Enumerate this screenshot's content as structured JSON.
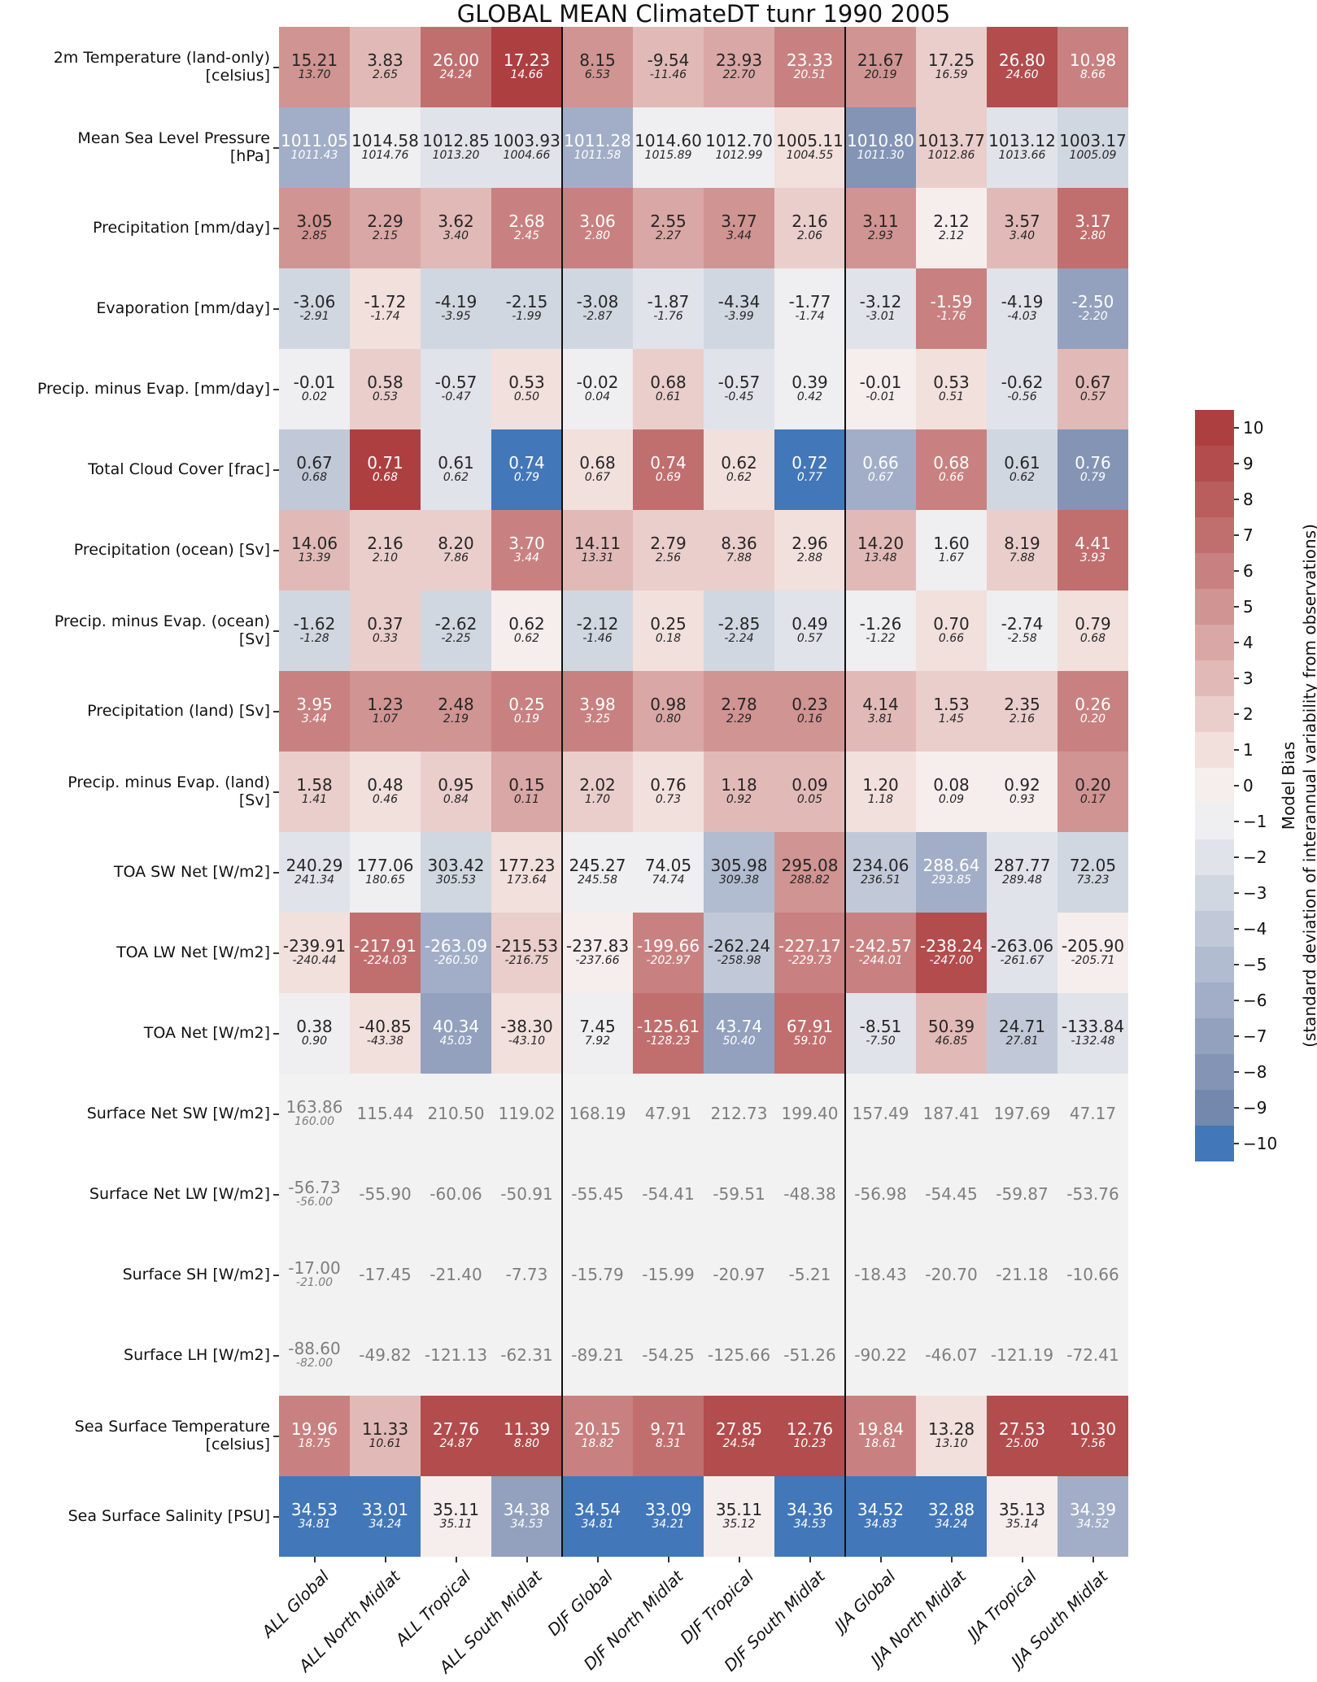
{
  "title": "GLOBAL MEAN ClimateDT tunr 1990 2005",
  "colorbar": {
    "title_line1": "Model Bias",
    "title_line2": "(standard deviation of interannual variability from observations)",
    "tick_labels": [
      "10",
      "9",
      "8",
      "7",
      "6",
      "5",
      "4",
      "3",
      "2",
      "1",
      "0",
      "−1",
      "−2",
      "−3",
      "−4",
      "−5",
      "−6",
      "−7",
      "−8",
      "−9",
      "−10"
    ],
    "palette_top_to_bottom": [
      "#ad3f41",
      "#b24c4d",
      "#b95d5d",
      "#c06f6e",
      "#c88180",
      "#d09492",
      "#d9a7a5",
      "#e1bab7",
      "#eacecb",
      "#f2e0dd",
      "#f6eeec",
      "#efeef0",
      "#e0e3ea",
      "#d1d7e1",
      "#c1c9d8",
      "#b2bcd0",
      "#a2aec7",
      "#93a1be",
      "#8394b5",
      "#7487ad",
      "#4277b9"
    ],
    "neutral_color": "#f2f2f2"
  },
  "chart_data": {
    "type": "heatmap",
    "title": "GLOBAL MEAN ClimateDT tunr 1990 2005",
    "colorbar_range": [
      -10,
      10
    ],
    "columns": [
      "ALL Global",
      "ALL North Midlat",
      "ALL Tropical",
      "ALL South Midlat",
      "DJF Global",
      "DJF North Midlat",
      "DJF Tropical",
      "DJF South Midlat",
      "JJA Global",
      "JJA North Midlat",
      "JJA Tropical",
      "JJA South Midlat"
    ],
    "column_groups": [
      {
        "label": "ALL",
        "after_col": 4
      },
      {
        "label": "DJF",
        "after_col": 8
      }
    ],
    "rows": [
      {
        "label_lines": [
          "2m Temperature (land-only)",
          "[celsius]"
        ],
        "values": [
          "15.21",
          "3.83",
          "26.00",
          "17.23",
          "8.15",
          "-9.54",
          "23.93",
          "23.33",
          "21.67",
          "17.25",
          "26.80",
          "10.98"
        ],
        "ref_values": [
          "13.70",
          "2.65",
          "24.24",
          "14.66",
          "6.53",
          "-11.46",
          "22.70",
          "20.51",
          "20.19",
          "16.59",
          "24.60",
          "8.66"
        ],
        "bias_levels": [
          5,
          3,
          7,
          10,
          5,
          3,
          4,
          6,
          5,
          2,
          9,
          6
        ]
      },
      {
        "label_lines": [
          "Mean Sea Level Pressure",
          "[hPa]"
        ],
        "values": [
          "1011.05",
          "1014.58",
          "1012.85",
          "1003.93",
          "1011.28",
          "1014.60",
          "1012.70",
          "1005.11",
          "1010.80",
          "1013.77",
          "1013.12",
          "1003.17"
        ],
        "ref_values": [
          "1011.43",
          "1014.76",
          "1013.20",
          "1004.66",
          "1011.58",
          "1015.89",
          "1012.99",
          "1004.55",
          "1011.30",
          "1012.86",
          "1013.66",
          "1005.09"
        ],
        "bias_levels": [
          -6,
          -1,
          -2,
          -2,
          -6,
          -1,
          -1,
          1,
          -8,
          2,
          -2,
          -3
        ]
      },
      {
        "label_lines": [
          "Precipitation [mm/day]"
        ],
        "values": [
          "3.05",
          "2.29",
          "3.62",
          "2.68",
          "3.06",
          "2.55",
          "3.77",
          "2.16",
          "3.11",
          "2.12",
          "3.57",
          "3.17"
        ],
        "ref_values": [
          "2.85",
          "2.15",
          "3.40",
          "2.45",
          "2.80",
          "2.27",
          "3.44",
          "2.06",
          "2.93",
          "2.12",
          "3.40",
          "2.80"
        ],
        "bias_levels": [
          5,
          4,
          3,
          6,
          6,
          4,
          5,
          2,
          5,
          0,
          3,
          7
        ]
      },
      {
        "label_lines": [
          "Evaporation [mm/day]"
        ],
        "values": [
          "-3.06",
          "-1.72",
          "-4.19",
          "-2.15",
          "-3.08",
          "-1.87",
          "-4.34",
          "-1.77",
          "-3.12",
          "-1.59",
          "-4.19",
          "-2.50"
        ],
        "ref_values": [
          "-2.91",
          "-1.74",
          "-3.95",
          "-1.99",
          "-2.87",
          "-1.76",
          "-3.99",
          "-1.74",
          "-3.01",
          "-1.76",
          "-4.03",
          "-2.20"
        ],
        "bias_levels": [
          -3,
          1,
          -3,
          -3,
          -3,
          -2,
          -3,
          -1,
          -2,
          6,
          -2,
          -7
        ]
      },
      {
        "label_lines": [
          "Precip. minus Evap. [mm/day]"
        ],
        "values": [
          "-0.01",
          "0.58",
          "-0.57",
          "0.53",
          "-0.02",
          "0.68",
          "-0.57",
          "0.39",
          "-0.01",
          "0.53",
          "-0.62",
          "0.67"
        ],
        "ref_values": [
          "0.02",
          "0.53",
          "-0.47",
          "0.50",
          "0.04",
          "0.61",
          "-0.45",
          "0.42",
          "-0.01",
          "0.51",
          "-0.56",
          "0.57"
        ],
        "bias_levels": [
          -1,
          2,
          -2,
          1,
          -1,
          2,
          -2,
          -1,
          0,
          1,
          -2,
          3
        ]
      },
      {
        "label_lines": [
          "Total Cloud Cover [frac]"
        ],
        "values": [
          "0.67",
          "0.71",
          "0.61",
          "0.74",
          "0.68",
          "0.74",
          "0.62",
          "0.72",
          "0.66",
          "0.68",
          "0.61",
          "0.76"
        ],
        "ref_values": [
          "0.68",
          "0.68",
          "0.62",
          "0.79",
          "0.67",
          "0.69",
          "0.62",
          "0.77",
          "0.67",
          "0.66",
          "0.62",
          "0.79"
        ],
        "bias_levels": [
          -4,
          10,
          -2,
          -10,
          1,
          7,
          1,
          -10,
          -6,
          6,
          -3,
          -8
        ]
      },
      {
        "label_lines": [
          "Precipitation (ocean) [Sv]"
        ],
        "values": [
          "14.06",
          "2.16",
          "8.20",
          "3.70",
          "14.11",
          "2.79",
          "8.36",
          "2.96",
          "14.20",
          "1.60",
          "8.19",
          "4.41"
        ],
        "ref_values": [
          "13.39",
          "2.10",
          "7.86",
          "3.44",
          "13.31",
          "2.56",
          "7.88",
          "2.88",
          "13.48",
          "1.67",
          "7.88",
          "3.93"
        ],
        "bias_levels": [
          3,
          2,
          2,
          6,
          3,
          2,
          2,
          1,
          3,
          -1,
          2,
          7
        ]
      },
      {
        "label_lines": [
          "Precip. minus Evap. (ocean)",
          "[Sv]"
        ],
        "values": [
          "-1.62",
          "0.37",
          "-2.62",
          "0.62",
          "-2.12",
          "0.25",
          "-2.85",
          "0.49",
          "-1.26",
          "0.70",
          "-2.74",
          "0.79"
        ],
        "ref_values": [
          "-1.28",
          "0.33",
          "-2.25",
          "0.62",
          "-1.46",
          "0.18",
          "-2.24",
          "0.57",
          "-1.22",
          "0.66",
          "-2.58",
          "0.68"
        ],
        "bias_levels": [
          -3,
          2,
          -3,
          0,
          -3,
          1,
          -3,
          -2,
          -1,
          1,
          -1,
          1
        ]
      },
      {
        "label_lines": [
          "Precipitation (land) [Sv]"
        ],
        "values": [
          "3.95",
          "1.23",
          "2.48",
          "0.25",
          "3.98",
          "0.98",
          "2.78",
          "0.23",
          "4.14",
          "1.53",
          "2.35",
          "0.26"
        ],
        "ref_values": [
          "3.44",
          "1.07",
          "2.19",
          "0.19",
          "3.25",
          "0.80",
          "2.29",
          "0.16",
          "3.81",
          "1.45",
          "2.16",
          "0.20"
        ],
        "bias_levels": [
          6,
          5,
          5,
          6,
          6,
          4,
          5,
          5,
          3,
          2,
          2,
          6
        ]
      },
      {
        "label_lines": [
          "Precip. minus Evap. (land)",
          "[Sv]"
        ],
        "values": [
          "1.58",
          "0.48",
          "0.95",
          "0.15",
          "2.02",
          "0.76",
          "1.18",
          "0.09",
          "1.20",
          "0.08",
          "0.92",
          "0.20"
        ],
        "ref_values": [
          "1.41",
          "0.46",
          "0.84",
          "0.11",
          "1.70",
          "0.73",
          "0.92",
          "0.05",
          "1.18",
          "0.09",
          "0.93",
          "0.17"
        ],
        "bias_levels": [
          2,
          1,
          2,
          4,
          2,
          1,
          3,
          3,
          1,
          0,
          0,
          5
        ]
      },
      {
        "label_lines": [
          "TOA SW Net [W/m2]"
        ],
        "values": [
          "240.29",
          "177.06",
          "303.42",
          "177.23",
          "245.27",
          "74.05",
          "305.98",
          "295.08",
          "234.06",
          "288.64",
          "287.77",
          "72.05"
        ],
        "ref_values": [
          "241.34",
          "180.65",
          "305.53",
          "173.64",
          "245.58",
          "74.74",
          "309.38",
          "288.82",
          "236.51",
          "293.85",
          "289.48",
          "73.23"
        ],
        "bias_levels": [
          -2,
          -1,
          -3,
          1,
          -1,
          -1,
          -5,
          5,
          -4,
          -6,
          -2,
          -3
        ]
      },
      {
        "label_lines": [
          "TOA LW Net [W/m2]"
        ],
        "values": [
          "-239.91",
          "-217.91",
          "-263.09",
          "-215.53",
          "-237.83",
          "-199.66",
          "-262.24",
          "-227.17",
          "-242.57",
          "-238.24",
          "-263.06",
          "-205.90"
        ],
        "ref_values": [
          "-240.44",
          "-224.03",
          "-260.50",
          "-216.75",
          "-237.66",
          "-202.97",
          "-258.98",
          "-229.73",
          "-244.01",
          "-247.00",
          "-261.67",
          "-205.71"
        ],
        "bias_levels": [
          1,
          7,
          -6,
          2,
          0,
          6,
          -4,
          6,
          6,
          9,
          -2,
          0
        ]
      },
      {
        "label_lines": [
          "TOA Net [W/m2]"
        ],
        "values": [
          "0.38",
          "-40.85",
          "40.34",
          "-38.30",
          "7.45",
          "-125.61",
          "43.74",
          "67.91",
          "-8.51",
          "50.39",
          "24.71",
          "-133.84"
        ],
        "ref_values": [
          "0.90",
          "-43.38",
          "45.03",
          "-43.10",
          "7.92",
          "-128.23",
          "50.40",
          "59.10",
          "-7.50",
          "46.85",
          "27.81",
          "-132.48"
        ],
        "bias_levels": [
          -1,
          1,
          -7,
          1,
          -1,
          7,
          -7,
          7,
          -2,
          3,
          -4,
          -2
        ]
      },
      {
        "label_lines": [
          "Surface Net SW [W/m2]"
        ],
        "values": [
          "163.86",
          "115.44",
          "210.50",
          "119.02",
          "168.19",
          "47.91",
          "212.73",
          "199.40",
          "157.49",
          "187.41",
          "197.69",
          "47.17"
        ],
        "ref_values": [
          "160.00",
          null,
          null,
          null,
          null,
          null,
          null,
          null,
          null,
          null,
          null,
          null
        ],
        "bias_levels": [
          null,
          null,
          null,
          null,
          null,
          null,
          null,
          null,
          null,
          null,
          null,
          null
        ]
      },
      {
        "label_lines": [
          "Surface Net LW [W/m2]"
        ],
        "values": [
          "-56.73",
          "-55.90",
          "-60.06",
          "-50.91",
          "-55.45",
          "-54.41",
          "-59.51",
          "-48.38",
          "-56.98",
          "-54.45",
          "-59.87",
          "-53.76"
        ],
        "ref_values": [
          "-56.00",
          null,
          null,
          null,
          null,
          null,
          null,
          null,
          null,
          null,
          null,
          null
        ],
        "bias_levels": [
          null,
          null,
          null,
          null,
          null,
          null,
          null,
          null,
          null,
          null,
          null,
          null
        ]
      },
      {
        "label_lines": [
          "Surface SH [W/m2]"
        ],
        "values": [
          "-17.00",
          "-17.45",
          "-21.40",
          "-7.73",
          "-15.79",
          "-15.99",
          "-20.97",
          "-5.21",
          "-18.43",
          "-20.70",
          "-21.18",
          "-10.66"
        ],
        "ref_values": [
          "-21.00",
          null,
          null,
          null,
          null,
          null,
          null,
          null,
          null,
          null,
          null,
          null
        ],
        "bias_levels": [
          null,
          null,
          null,
          null,
          null,
          null,
          null,
          null,
          null,
          null,
          null,
          null
        ]
      },
      {
        "label_lines": [
          "Surface LH [W/m2]"
        ],
        "values": [
          "-88.60",
          "-49.82",
          "-121.13",
          "-62.31",
          "-89.21",
          "-54.25",
          "-125.66",
          "-51.26",
          "-90.22",
          "-46.07",
          "-121.19",
          "-72.41"
        ],
        "ref_values": [
          "-82.00",
          null,
          null,
          null,
          null,
          null,
          null,
          null,
          null,
          null,
          null,
          null
        ],
        "bias_levels": [
          null,
          null,
          null,
          null,
          null,
          null,
          null,
          null,
          null,
          null,
          null,
          null
        ]
      },
      {
        "label_lines": [
          "Sea Surface Temperature",
          "[celsius]"
        ],
        "values": [
          "19.96",
          "11.33",
          "27.76",
          "11.39",
          "20.15",
          "9.71",
          "27.85",
          "12.76",
          "19.84",
          "13.28",
          "27.53",
          "10.30"
        ],
        "ref_values": [
          "18.75",
          "10.61",
          "24.87",
          "8.80",
          "18.82",
          "8.31",
          "24.54",
          "10.23",
          "18.61",
          "13.10",
          "25.00",
          "7.56"
        ],
        "bias_levels": [
          6,
          3,
          9,
          9,
          6,
          7,
          9,
          9,
          6,
          1,
          9,
          9
        ]
      },
      {
        "label_lines": [
          "Sea Surface Salinity [PSU]"
        ],
        "values": [
          "34.53",
          "33.01",
          "35.11",
          "34.38",
          "34.54",
          "33.09",
          "35.11",
          "34.36",
          "34.52",
          "32.88",
          "35.13",
          "34.39"
        ],
        "ref_values": [
          "34.81",
          "34.24",
          "35.11",
          "34.53",
          "34.81",
          "34.21",
          "35.12",
          "34.53",
          "34.83",
          "34.24",
          "35.14",
          "34.52"
        ],
        "bias_levels": [
          -10,
          -10,
          0,
          -7,
          -10,
          -10,
          0,
          -10,
          -10,
          -10,
          0,
          -6
        ]
      }
    ]
  }
}
